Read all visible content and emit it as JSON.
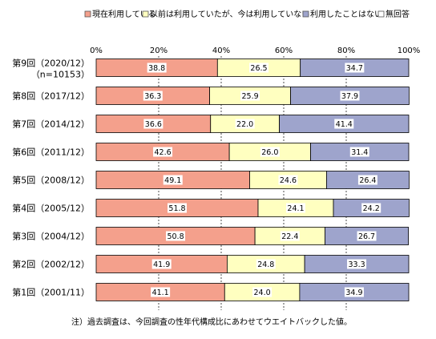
{
  "chart_data": {
    "type": "bar",
    "orientation": "horizontal",
    "stacked": "percent",
    "title": "",
    "xlabel": "",
    "ylabel": "",
    "xlim": [
      0,
      100
    ],
    "x_ticks": [
      "0%",
      "20%",
      "40%",
      "60%",
      "80%",
      "100%"
    ],
    "legend_position": "top",
    "categories": [
      "第9回（2020/12）",
      "第8回（2017/12）",
      "第7回（2014/12）",
      "第6回（2011/12）",
      "第5回（2008/12）",
      "第4回（2005/12）",
      "第3回（2004/12）",
      "第2回（2002/12）",
      "第1回（2001/11）"
    ],
    "category_sublabels": [
      "（n=10153）",
      "",
      "",
      "",
      "",
      "",
      "",
      "",
      ""
    ],
    "series": [
      {
        "name": "現在利用している",
        "color": "#f4a08c",
        "values": [
          38.8,
          36.3,
          36.6,
          42.6,
          49.1,
          51.8,
          50.8,
          41.9,
          41.1
        ]
      },
      {
        "name": "以前は利用していたが、今は利用していない",
        "color": "#ffffc0",
        "values": [
          26.5,
          25.9,
          22.0,
          26.0,
          24.6,
          24.1,
          22.4,
          24.8,
          24.0
        ]
      },
      {
        "name": "利用したことはない",
        "color": "#9ea4cc",
        "values": [
          34.7,
          37.9,
          41.4,
          31.4,
          26.4,
          24.2,
          26.7,
          33.3,
          34.9
        ]
      },
      {
        "name": "無回答",
        "color": "#ffffff",
        "values": [
          0,
          0,
          0,
          0,
          0,
          0,
          0,
          0,
          0
        ]
      }
    ],
    "value_labels": [
      [
        "38.8",
        "26.5",
        "34.7"
      ],
      [
        "36.3",
        "25.9",
        "37.9"
      ],
      [
        "36.6",
        "22.0",
        "41.4"
      ],
      [
        "42.6",
        "26.0",
        "31.4"
      ],
      [
        "49.1",
        "24.6",
        "26.4"
      ],
      [
        "51.8",
        "24.1",
        "24.2"
      ],
      [
        "50.8",
        "22.4",
        "26.7"
      ],
      [
        "41.9",
        "24.8",
        "33.3"
      ],
      [
        "41.1",
        "24.0",
        "34.9"
      ]
    ],
    "note": "注）過去調査は、今回調査の性年代構成比にあわせてウエイトバックした値。"
  }
}
